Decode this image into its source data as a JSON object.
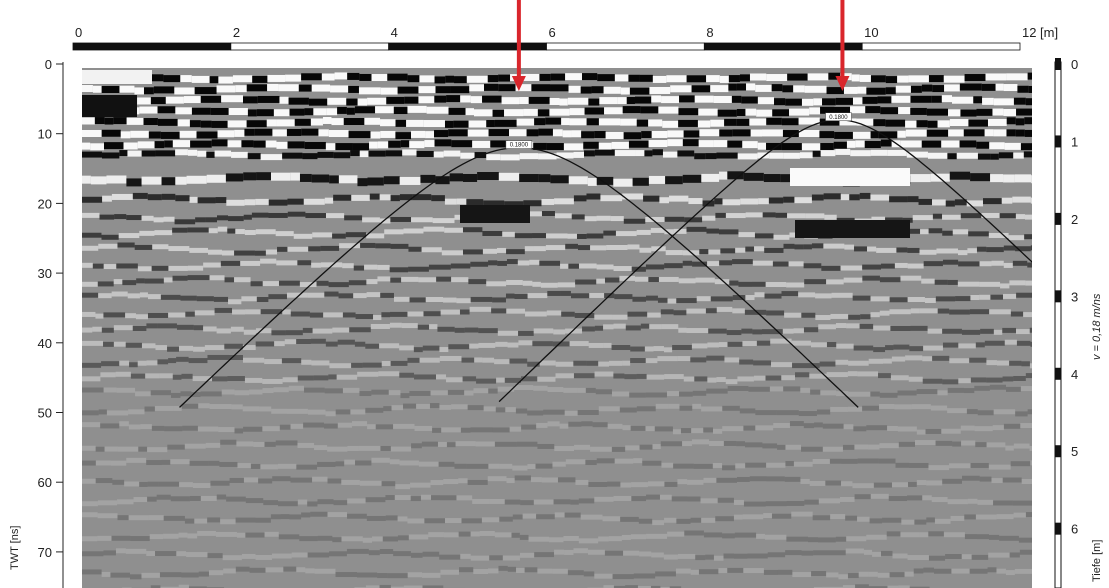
{
  "chart_data": {
    "type": "heatmap",
    "description": "GPR radargram with two fitted diffraction hyperbolas",
    "x_axis": {
      "unit_label": "[m]",
      "range": [
        0,
        12
      ],
      "tick_labels": [
        "0",
        "2",
        "4",
        "6",
        "8",
        "10",
        "12"
      ]
    },
    "y_axis_left": {
      "label": "TWT [ns]",
      "range": [
        0,
        75
      ],
      "tick_labels": [
        "0",
        "10",
        "20",
        "30",
        "40",
        "50",
        "60",
        "70"
      ]
    },
    "y_axis_right": {
      "label": "Tiefe [m]",
      "velocity_label": "v = 0,18 m/ns",
      "range": [
        0,
        6.75
      ],
      "tick_labels": [
        "0",
        "1",
        "2",
        "3",
        "4",
        "5",
        "6"
      ]
    },
    "hyperbolas": [
      {
        "apex_x": 5.65,
        "apex_t": 12,
        "label": "0.1800"
      },
      {
        "apex_x": 9.7,
        "apex_t": 8,
        "label": "0.1800"
      }
    ],
    "markers": [
      {
        "x": 5.65,
        "color": "#d9262c"
      },
      {
        "x": 9.75,
        "color": "#d9262c"
      }
    ],
    "grid": false
  }
}
